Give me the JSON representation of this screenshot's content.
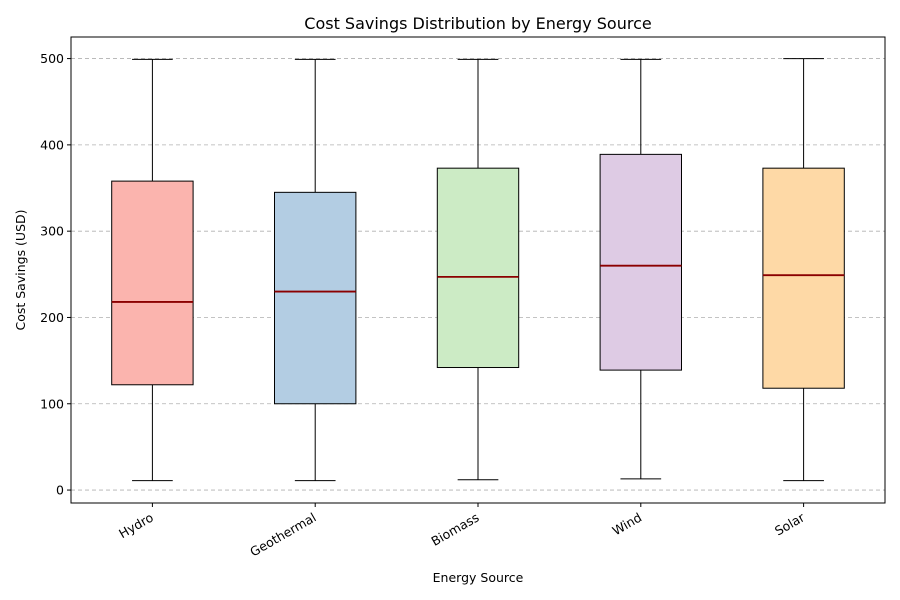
{
  "chart_data": {
    "type": "box",
    "title": "Cost Savings Distribution by Energy Source",
    "xlabel": "Energy Source",
    "ylabel": "Cost Savings (USD)",
    "ylim": [
      -15,
      525
    ],
    "yticks": [
      0,
      100,
      200,
      300,
      400,
      500
    ],
    "grid": "y-dashed",
    "categories": [
      "Hydro",
      "Geothermal",
      "Biomass",
      "Wind",
      "Solar"
    ],
    "boxes": [
      {
        "category": "Hydro",
        "min": 11,
        "q1": 122,
        "median": 218,
        "q3": 358,
        "max": 499,
        "color": "#fbb4ae"
      },
      {
        "category": "Geothermal",
        "min": 11,
        "q1": 100,
        "median": 230,
        "q3": 345,
        "max": 499,
        "color": "#b3cde3"
      },
      {
        "category": "Biomass",
        "min": 12,
        "q1": 142,
        "median": 247,
        "q3": 373,
        "max": 499,
        "color": "#ccebc5"
      },
      {
        "category": "Wind",
        "min": 13,
        "q1": 139,
        "median": 260,
        "q3": 389,
        "max": 499,
        "color": "#decbe4"
      },
      {
        "category": "Solar",
        "min": 11,
        "q1": 118,
        "median": 249,
        "q3": 373,
        "max": 500,
        "color": "#fed9a6"
      }
    ],
    "median_color": "#8b0000"
  }
}
